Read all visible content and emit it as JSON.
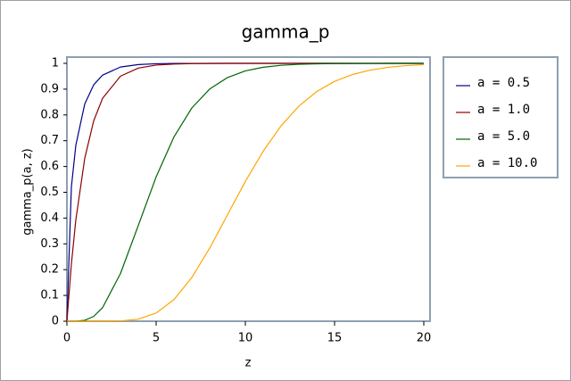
{
  "chart_data": {
    "type": "line",
    "title": "gamma_p",
    "x_label": "z",
    "y_label": "gamma_p(a, z)",
    "x": [
      0,
      0.25,
      0.5,
      1,
      1.5,
      2,
      3,
      4,
      5,
      6,
      7,
      8,
      9,
      10,
      11,
      12,
      13,
      14,
      15,
      16,
      17,
      18,
      19,
      20
    ],
    "series": [
      {
        "name": "a = 0.5",
        "color": "#00008b",
        "values": [
          0,
          0.5205,
          0.6827,
          0.8427,
          0.9167,
          0.9545,
          0.9857,
          0.9953,
          0.9984,
          0.9995,
          0.9998,
          0.9999,
          1,
          1,
          1,
          1,
          1,
          1,
          1,
          1,
          1,
          1,
          1,
          1
        ]
      },
      {
        "name": "a = 1.0",
        "color": "#8b0000",
        "values": [
          0,
          0.2212,
          0.3935,
          0.6321,
          0.7769,
          0.8647,
          0.9502,
          0.9817,
          0.9933,
          0.9975,
          0.9991,
          0.9997,
          0.9999,
          1,
          1,
          1,
          1,
          1,
          1,
          1,
          1,
          1,
          1,
          1
        ]
      },
      {
        "name": "a = 5.0",
        "color": "#006400",
        "values": [
          0,
          0,
          0.0002,
          0.0037,
          0.0186,
          0.0527,
          0.1847,
          0.3712,
          0.5595,
          0.7149,
          0.827,
          0.9004,
          0.945,
          0.9707,
          0.9849,
          0.9924,
          0.9963,
          0.9982,
          0.9991,
          0.9996,
          0.9998,
          0.9999,
          1,
          1
        ]
      },
      {
        "name": "a = 10.0",
        "color": "#ffa500",
        "values": [
          0,
          0,
          0,
          0,
          0,
          0.0001,
          0.0011,
          0.0081,
          0.0318,
          0.0839,
          0.1695,
          0.2834,
          0.4126,
          0.5421,
          0.6595,
          0.7576,
          0.8342,
          0.8906,
          0.9301,
          0.9567,
          0.9739,
          0.9846,
          0.9912,
          0.995
        ]
      }
    ],
    "xlim": [
      0,
      20
    ],
    "xticks": [
      0,
      5,
      10,
      15,
      20
    ],
    "ylim": [
      0,
      1
    ],
    "yticks": [
      0,
      0.1,
      0.2,
      0.3,
      0.4,
      0.5,
      0.6,
      0.7,
      0.8,
      0.9,
      1
    ],
    "legend": "right"
  }
}
